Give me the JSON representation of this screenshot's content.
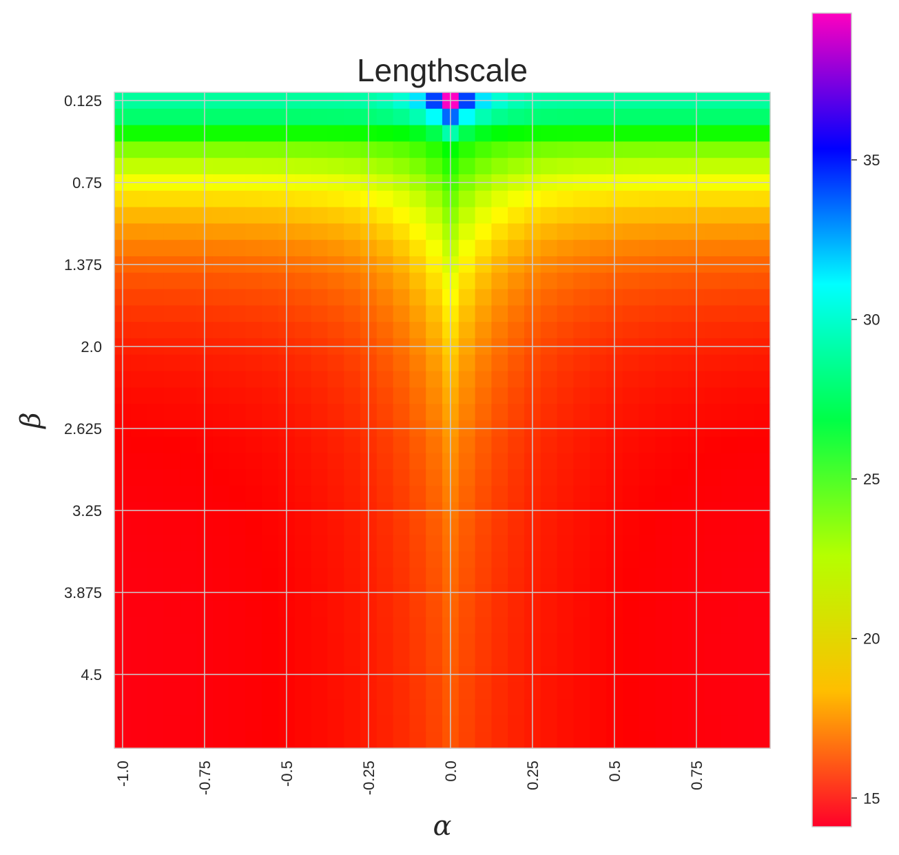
{
  "chart_data": {
    "type": "heatmap",
    "title": "Lengthscale",
    "xlabel": "α",
    "ylabel": "β",
    "x_tick_labels": [
      "-1.0",
      "-0.75",
      "-0.5",
      "-0.25",
      "0.0",
      "0.25",
      "0.5",
      "0.75"
    ],
    "x_tick_values": [
      -1.0,
      -0.75,
      -0.5,
      -0.25,
      0.0,
      0.25,
      0.5,
      0.75
    ],
    "y_tick_labels": [
      "0.125",
      "0.75",
      "1.375",
      "2.0",
      "2.625",
      "3.25",
      "3.875",
      "4.5"
    ],
    "y_tick_values": [
      0.125,
      0.75,
      1.375,
      2.0,
      2.625,
      3.25,
      3.875,
      4.5
    ],
    "x_range": [
      -1.025,
      0.975
    ],
    "y_range": [
      0.0625,
      5.0625
    ],
    "grid": true,
    "colormap": "gist_rainbow",
    "colorbar": {
      "range": [
        14.1,
        39.6
      ],
      "tick_values": [
        15,
        20,
        25,
        30,
        35
      ],
      "tick_labels": [
        "15",
        "20",
        "25",
        "30",
        "35"
      ],
      "placement": "right"
    },
    "grid_size": {
      "cols": 40,
      "rows": 40
    },
    "description_values": {
      "alpha_min": -1.0,
      "alpha_step": 0.05,
      "beta_min": 0.125,
      "beta_step": 0.125,
      "value_top_center": 39.5,
      "value_top_edges": 27.2,
      "value_bottom": 14.4
    }
  },
  "colors": {
    "grid": "#cccccc",
    "text": "#262626",
    "frame": "#cccccc"
  }
}
